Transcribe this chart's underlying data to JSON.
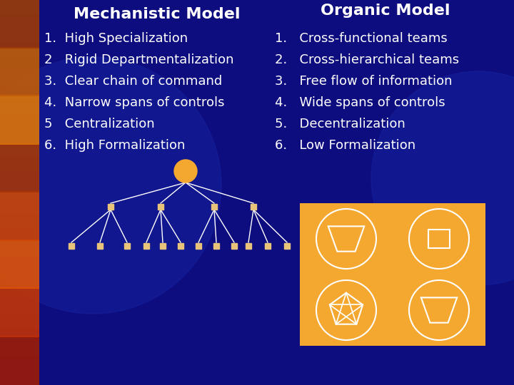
{
  "bg_color": "#0d0d80",
  "title_mechanistic": "Mechanistic Model",
  "title_organic": "Organic Model",
  "title_fontsize": 16,
  "title_color": "#ffffff",
  "text_color": "#ffffff",
  "list_fontsize": 13,
  "mechanistic_items": [
    "1.  High Specialization",
    "2   Rigid Departmentalization",
    "3.  Clear chain of command",
    "4.  Narrow spans of controls",
    "5   Centralization",
    "6.  High Formalization"
  ],
  "organic_items": [
    "1.   Cross-functional teams",
    "2.   Cross-hierarchical teams",
    "3.   Free flow of information",
    "4.   Wide spans of controls",
    "5.   Decentralization",
    "6.   Low Formalization"
  ],
  "orange_color": "#f5a830",
  "node_color": "#e8c47a",
  "line_color": "#ffffff",
  "root_color": "#f5a830",
  "left_strip_colors": [
    "#cc3300",
    "#dd6600",
    "#ffaa00",
    "#cc3300"
  ],
  "gear_color": "#1a2aaa"
}
